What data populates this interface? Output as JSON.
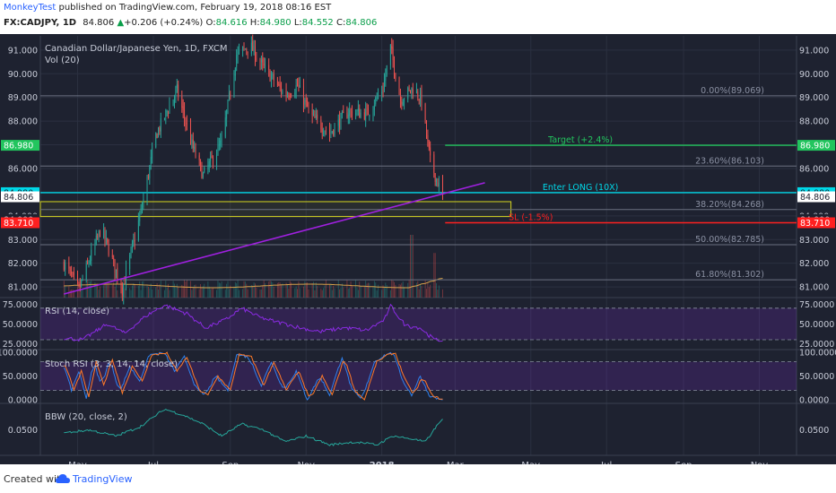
{
  "header": {
    "author": "MonkeyTest",
    "published_text": "published on TradingView.com, February 19, 2018 08:16 EST",
    "symbol_tf": "FX:CADJPY, 1D",
    "last": "84.806",
    "change": "+0.206 (+0.24%)",
    "o_label": "O:",
    "o_value": "84.616",
    "h_label": "H:",
    "h_value": "84.980",
    "l_label": "L:",
    "l_value": "84.552",
    "c_label": "C:",
    "c_value": "84.806"
  },
  "footer": {
    "created_with": "Created with",
    "brand": "TradingView"
  },
  "colors": {
    "background": "#1e2230",
    "grid": "#2b3040",
    "up": "#26a69a",
    "down": "#ef5350",
    "fib": "#6b7080",
    "target": "#22c55e",
    "entry": "#00d8e8",
    "stop": "#ff2020",
    "trend": "#a020e0",
    "zone": "#d8d820",
    "rsi": "#8a2be2",
    "stoch_k": "#2f80ed",
    "stoch_d": "#ff7a29",
    "bbw": "#26a69a",
    "header_green": "#0a9e4a",
    "header_red": "#e53935",
    "brand_blue": "#2962ff"
  },
  "chart_data": {
    "type": "candlestick",
    "title": "Canadian Dollar/Japanese Yen, 1D, FXCM",
    "volume_label": "Vol (20)",
    "y_ticks": [
      "91.000",
      "90.000",
      "89.000",
      "88.000",
      "87.000",
      "86.000",
      "85.000",
      "84.000",
      "83.000",
      "82.000",
      "81.000"
    ],
    "ylim": [
      80.55,
      91.6
    ],
    "x_ticks": [
      "May",
      "Jul",
      "Sep",
      "Nov",
      "2018",
      "Mar",
      "May",
      "Jul",
      "Sep",
      "Nov"
    ],
    "x_tick_bold": "2018",
    "price_tags": [
      "86.980",
      "84.980",
      "84.806",
      "84.000",
      "83.710"
    ],
    "levels": [
      {
        "name": "fib-0",
        "label": "0.00%(89.069)",
        "value": 89.069,
        "kind": "fib"
      },
      {
        "name": "fib-236",
        "label": "23.60%(86.103)",
        "value": 86.103,
        "kind": "fib"
      },
      {
        "name": "fib-382",
        "label": "38.20%(84.268)",
        "value": 84.268,
        "kind": "fib"
      },
      {
        "name": "fib-500",
        "label": "50.00%(82.785)",
        "value": 82.785,
        "kind": "fib"
      },
      {
        "name": "fib-618",
        "label": "61.80%(81.302)",
        "value": 81.302,
        "kind": "fib"
      },
      {
        "name": "target",
        "label": "Target (+2.4%)",
        "value": 86.98,
        "kind": "target"
      },
      {
        "name": "entry",
        "label": "Enter LONG (10X)",
        "value": 84.98,
        "kind": "entry"
      },
      {
        "name": "stop",
        "label": "SL (-1.5%)",
        "value": 83.71,
        "kind": "stop"
      }
    ],
    "zone": {
      "from": 83.97,
      "to": 84.6
    },
    "trendline": {
      "start": {
        "date": "2017-04-20",
        "value": 80.7
      },
      "end": {
        "date": "2018-03-25",
        "value": 85.4
      }
    },
    "series_anchors": [
      [
        "2017-04-20",
        82.0
      ],
      [
        "2017-05-02",
        80.9
      ],
      [
        "2017-05-20",
        83.5
      ],
      [
        "2017-06-06",
        80.9
      ],
      [
        "2017-06-22",
        84.4
      ],
      [
        "2017-07-03",
        87.4
      ],
      [
        "2017-07-20",
        89.3
      ],
      [
        "2017-08-01",
        87.0
      ],
      [
        "2017-08-10",
        85.7
      ],
      [
        "2017-08-25",
        87.1
      ],
      [
        "2017-09-06",
        90.8
      ],
      [
        "2017-09-17",
        91.2
      ],
      [
        "2017-09-27",
        90.3
      ],
      [
        "2017-10-05",
        89.8
      ],
      [
        "2017-10-15",
        89.1
      ],
      [
        "2017-10-25",
        89.5
      ],
      [
        "2017-11-05",
        88.2
      ],
      [
        "2017-11-20",
        87.5
      ],
      [
        "2017-12-05",
        88.4
      ],
      [
        "2017-12-20",
        88.3
      ],
      [
        "2018-01-02",
        89.4
      ],
      [
        "2018-01-08",
        91.1
      ],
      [
        "2018-01-16",
        88.9
      ],
      [
        "2018-01-26",
        89.4
      ],
      [
        "2018-02-02",
        88.9
      ],
      [
        "2018-02-09",
        86.3
      ],
      [
        "2018-02-19",
        84.806
      ]
    ],
    "volume_spikes": [
      [
        "2018-01-25",
        1.0
      ],
      [
        "2018-02-12",
        0.55
      ]
    ],
    "rsi": {
      "label": "RSI (14, close)",
      "ticks": [
        "75.0000",
        "50.0000",
        "25.0000"
      ],
      "bands": [
        70,
        30
      ],
      "ylim": [
        22,
        80
      ],
      "anchors": [
        [
          "2017-04-20",
          32
        ],
        [
          "2017-05-05",
          30
        ],
        [
          "2017-05-25",
          50
        ],
        [
          "2017-06-08",
          38
        ],
        [
          "2017-06-25",
          60
        ],
        [
          "2017-07-10",
          74
        ],
        [
          "2017-07-28",
          63
        ],
        [
          "2017-08-12",
          45
        ],
        [
          "2017-08-28",
          55
        ],
        [
          "2017-09-10",
          70
        ],
        [
          "2017-09-25",
          58
        ],
        [
          "2017-10-10",
          52
        ],
        [
          "2017-10-28",
          45
        ],
        [
          "2017-11-12",
          40
        ],
        [
          "2017-12-01",
          45
        ],
        [
          "2017-12-20",
          42
        ],
        [
          "2018-01-03",
          55
        ],
        [
          "2018-01-08",
          73
        ],
        [
          "2018-01-20",
          48
        ],
        [
          "2018-02-01",
          45
        ],
        [
          "2018-02-12",
          30
        ],
        [
          "2018-02-19",
          29
        ]
      ]
    },
    "stoch": {
      "label": "Stoch RSI (3, 3, 14, 14, close)",
      "ticks": [
        "100.0000",
        "50.0000",
        "0.0000"
      ],
      "bands": [
        80,
        20
      ],
      "ylim": [
        0,
        100
      ],
      "anchors": [
        [
          "2017-04-20",
          70
        ],
        [
          "2017-04-26",
          20
        ],
        [
          "2017-05-02",
          60
        ],
        [
          "2017-05-08",
          5
        ],
        [
          "2017-05-14",
          80
        ],
        [
          "2017-05-20",
          30
        ],
        [
          "2017-05-27",
          85
        ],
        [
          "2017-06-04",
          15
        ],
        [
          "2017-06-12",
          70
        ],
        [
          "2017-06-20",
          40
        ],
        [
          "2017-06-28",
          95
        ],
        [
          "2017-07-10",
          98
        ],
        [
          "2017-07-18",
          60
        ],
        [
          "2017-07-26",
          90
        ],
        [
          "2017-08-05",
          20
        ],
        [
          "2017-08-12",
          10
        ],
        [
          "2017-08-20",
          50
        ],
        [
          "2017-08-30",
          20
        ],
        [
          "2017-09-06",
          95
        ],
        [
          "2017-09-16",
          90
        ],
        [
          "2017-09-26",
          30
        ],
        [
          "2017-10-04",
          80
        ],
        [
          "2017-10-14",
          20
        ],
        [
          "2017-10-24",
          60
        ],
        [
          "2017-11-02",
          0
        ],
        [
          "2017-11-12",
          50
        ],
        [
          "2017-11-20",
          10
        ],
        [
          "2017-11-30",
          90
        ],
        [
          "2017-12-08",
          20
        ],
        [
          "2017-12-16",
          0
        ],
        [
          "2017-12-26",
          80
        ],
        [
          "2018-01-04",
          95
        ],
        [
          "2018-01-10",
          98
        ],
        [
          "2018-01-18",
          40
        ],
        [
          "2018-01-25",
          10
        ],
        [
          "2018-02-01",
          50
        ],
        [
          "2018-02-08",
          10
        ],
        [
          "2018-02-15",
          2
        ],
        [
          "2018-02-19",
          2
        ]
      ]
    },
    "bbw": {
      "label": "BBW (20, close, 2)",
      "ticks": [
        "0.0500"
      ],
      "ylim": [
        0.012,
        0.09
      ],
      "anchors": [
        [
          "2017-04-20",
          0.045
        ],
        [
          "2017-05-10",
          0.05
        ],
        [
          "2017-06-01",
          0.04
        ],
        [
          "2017-06-20",
          0.055
        ],
        [
          "2017-07-10",
          0.085
        ],
        [
          "2017-07-25",
          0.075
        ],
        [
          "2017-08-10",
          0.06
        ],
        [
          "2017-08-25",
          0.04
        ],
        [
          "2017-09-10",
          0.06
        ],
        [
          "2017-09-28",
          0.05
        ],
        [
          "2017-10-15",
          0.03
        ],
        [
          "2017-11-01",
          0.04
        ],
        [
          "2017-11-20",
          0.025
        ],
        [
          "2017-12-10",
          0.03
        ],
        [
          "2017-12-28",
          0.025
        ],
        [
          "2018-01-10",
          0.04
        ],
        [
          "2018-01-25",
          0.035
        ],
        [
          "2018-02-05",
          0.03
        ],
        [
          "2018-02-19",
          0.07
        ]
      ]
    }
  }
}
